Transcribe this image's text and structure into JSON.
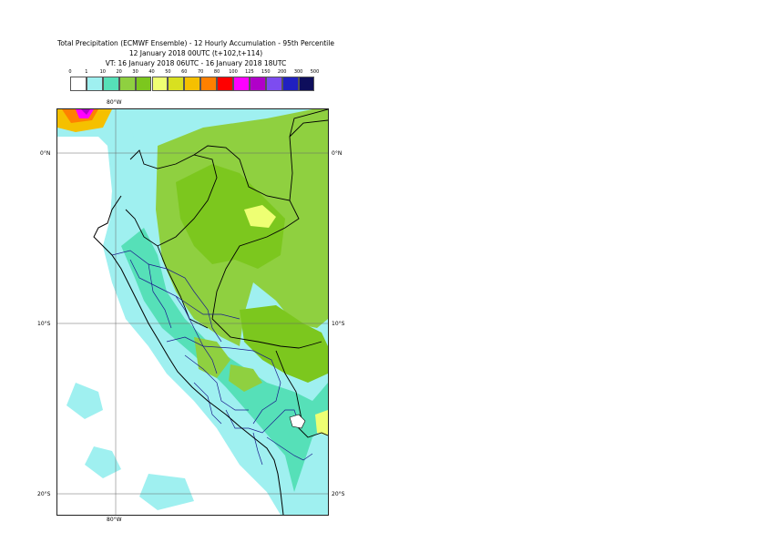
{
  "title": {
    "line1": "Total Precipitation (ECMWF Ensemble) - 12 Hourly Accumulation - 95th Percentile",
    "line2": "12 January 2018 00UTC (t+102,t+114)",
    "line3": "VT: 16 January 2018 06UTC - 16 January 2018 18UTC"
  },
  "legend": {
    "thresholds": [
      "0",
      "1",
      "10",
      "20",
      "30",
      "40",
      "50",
      "60",
      "70",
      "80",
      "100",
      "125",
      "150",
      "200",
      "300",
      "500"
    ],
    "colors": [
      "#ffffff",
      "#9ff0f0",
      "#56e0b8",
      "#8fd040",
      "#7cc71e",
      "#eeff73",
      "#d8e020",
      "#f5c000",
      "#ff8000",
      "#ff0000",
      "#ff00ff",
      "#b000c8",
      "#7d4cf0",
      "#2020c0",
      "#0e0e5c"
    ]
  },
  "axes": {
    "top_lon": "80°W",
    "bottom_lon": "80°W",
    "left_lat": [
      "0°N",
      "10°S",
      "20°S"
    ],
    "right_lat": [
      "0°N",
      "10°S",
      "20°S"
    ]
  }
}
